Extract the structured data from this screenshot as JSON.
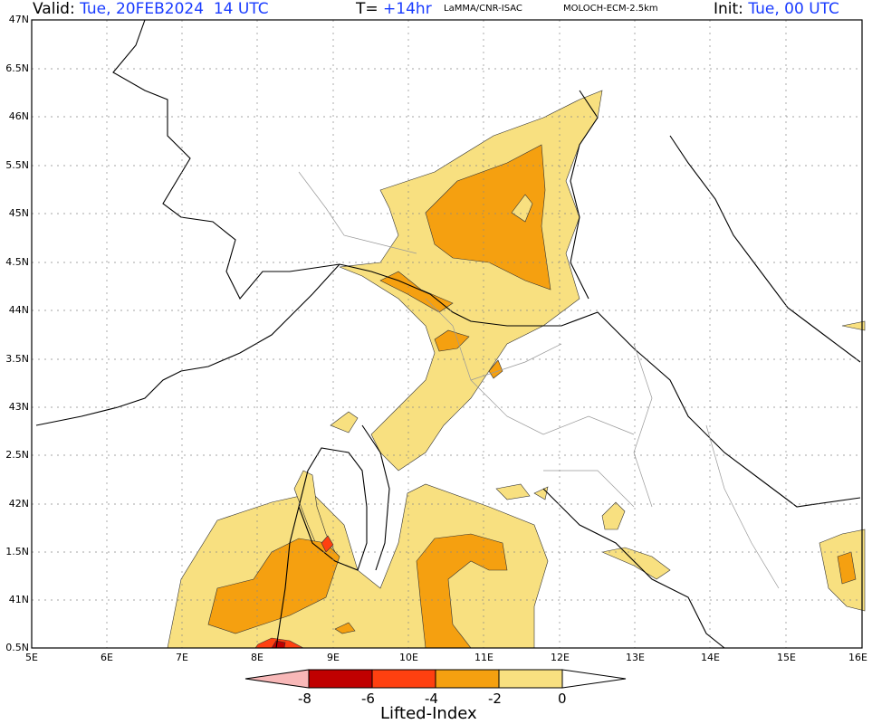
{
  "header": {
    "valid_label": "Valid:",
    "valid_value": "Tue, 20FEB2024  14 UTC",
    "t_label": "T=",
    "t_value": "+14hr",
    "source": "LaMMA/CNR-ISAC",
    "model": "MOLOCH-ECM-2.5km",
    "init_label": "Init:",
    "init_value": "Tue, 00 UTC"
  },
  "axes": {
    "y_labels": [
      "47N",
      "6.5N",
      "46N",
      "5.5N",
      "45N",
      "4.5N",
      "44N",
      "3.5N",
      "43N",
      "2.5N",
      "42N",
      "1.5N",
      "41N",
      "0.5N"
    ],
    "x_labels": [
      "5E",
      "6E",
      "7E",
      "8E",
      "9E",
      "10E",
      "11E",
      "12E",
      "13E",
      "14E",
      "15E",
      "16E"
    ]
  },
  "colorbar": {
    "title": "Lifted-Index",
    "ticks": [
      "-8",
      "-6",
      "-4",
      "-2",
      "0"
    ],
    "colors": {
      "lt_-8": "#f8b8b8",
      "-8_-6": "#c00000",
      "-6_-4": "#ff4010",
      "-4_-2": "#f5a010",
      "-2_0": "#f8e080",
      "gt_0": "#ffffff"
    }
  }
}
